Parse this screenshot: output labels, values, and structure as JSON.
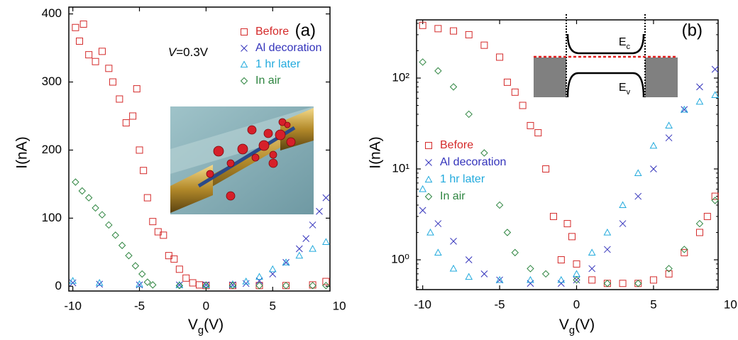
{
  "chart_data": [
    {
      "type": "scatter",
      "panel_label": "(a)",
      "annotation": "V=0.3V",
      "x_label": "Vg(V)",
      "y_label": "I(nA)",
      "xlim": [
        -10.3,
        9.3
      ],
      "ylim": [
        -7,
        410
      ],
      "xticks": [
        -10,
        -5,
        0,
        5,
        10
      ],
      "yticks": [
        0,
        100,
        200,
        300,
        400
      ],
      "legend_position": "upper right",
      "series": [
        {
          "name": "Before",
          "color": "#d42a2a",
          "marker": "square",
          "x": [
            -9.8,
            -9.5,
            -9.2,
            -8.8,
            -8.3,
            -7.8,
            -7.3,
            -7,
            -6.5,
            -6,
            -5.5,
            -5.2,
            -5,
            -4.7,
            -4.4,
            -4,
            -3.6,
            -3.2,
            -2.8,
            -2.4,
            -2,
            -1.5,
            -1,
            -0.5,
            0,
            2,
            4,
            6,
            8,
            9
          ],
          "values": [
            380,
            360,
            385,
            340,
            330,
            345,
            320,
            300,
            275,
            240,
            250,
            290,
            200,
            170,
            130,
            95,
            80,
            75,
            45,
            40,
            25,
            12,
            5,
            2,
            1,
            1,
            1,
            1,
            2,
            7
          ]
        },
        {
          "name": "Al decoration",
          "color": "#3333bb",
          "marker": "x",
          "x": [
            -10,
            -8,
            -5,
            -2,
            0,
            2,
            3,
            4,
            5,
            6,
            7,
            7.5,
            8,
            8.5,
            9
          ],
          "values": [
            5,
            3,
            2,
            2,
            2,
            2,
            4,
            8,
            18,
            35,
            55,
            70,
            90,
            110,
            130
          ]
        },
        {
          "name": "1 hr later",
          "color": "#22aadd",
          "marker": "triangle",
          "x": [
            -10,
            -8,
            -5,
            -2,
            0,
            2,
            3,
            4,
            5,
            6,
            7,
            8,
            9
          ],
          "values": [
            8,
            5,
            3,
            2,
            2,
            3,
            7,
            14,
            25,
            35,
            45,
            55,
            65
          ]
        },
        {
          "name": "In air",
          "color": "#2e8540",
          "marker": "diamond",
          "x": [
            -9.8,
            -9.3,
            -8.8,
            -8.3,
            -7.8,
            -7.3,
            -6.8,
            -6.3,
            -5.8,
            -5.3,
            -4.8,
            -4.4,
            -4,
            -2,
            0,
            2,
            4,
            6,
            8,
            9
          ],
          "values": [
            153,
            140,
            130,
            115,
            105,
            90,
            75,
            60,
            45,
            30,
            18,
            6,
            2,
            1,
            1,
            1,
            1,
            1,
            1,
            1
          ]
        }
      ]
    },
    {
      "type": "scatter",
      "panel_label": "(b)",
      "log_y": true,
      "x_label": "Vg(V)",
      "y_label": "I(nA)",
      "inset_labels": [
        "Ec",
        "Ev"
      ],
      "xlim": [
        -10.4,
        9.2
      ],
      "ylim": [
        0.47,
        437
      ],
      "xticks": [
        -10,
        -5,
        0,
        5,
        10
      ],
      "yticks": [
        {
          "value": 1,
          "label": "10⁰"
        },
        {
          "value": 10,
          "label": "10¹"
        },
        {
          "value": 100,
          "label": "10²"
        }
      ],
      "legend_position": "center left",
      "series": [
        {
          "name": "Before",
          "color": "#d42a2a",
          "marker": "square",
          "x": [
            -10,
            -9,
            -8,
            -7,
            -6,
            -5,
            -4.5,
            -4,
            -3.5,
            -3,
            -2.5,
            -2,
            -1.5,
            -1,
            -0.6,
            -0.3,
            0,
            1,
            2,
            3,
            4,
            5,
            6,
            7,
            8,
            8.5,
            9
          ],
          "values": [
            380,
            350,
            330,
            300,
            230,
            170,
            90,
            70,
            50,
            30,
            25,
            10,
            3,
            1,
            2.5,
            1.8,
            0.9,
            0.6,
            0.55,
            0.55,
            0.55,
            0.6,
            0.7,
            1.2,
            2,
            3,
            5
          ]
        },
        {
          "name": "Al decoration",
          "color": "#3333bb",
          "marker": "x",
          "x": [
            -10,
            -9,
            -8,
            -7,
            -6,
            -5,
            -3,
            -1,
            0,
            1,
            2,
            3,
            4,
            5,
            6,
            7,
            8,
            9
          ],
          "values": [
            3.5,
            2.5,
            1.6,
            1,
            0.7,
            0.6,
            0.55,
            0.55,
            0.6,
            0.8,
            1.3,
            2.5,
            5,
            10,
            22,
            45,
            80,
            125
          ]
        },
        {
          "name": "1 hr later",
          "color": "#22aadd",
          "marker": "triangle",
          "x": [
            -10,
            -9.5,
            -9,
            -8,
            -7,
            -5,
            -3,
            -1,
            0,
            1,
            2,
            3,
            4,
            5,
            6,
            7,
            8,
            9
          ],
          "values": [
            6,
            2,
            1.2,
            0.8,
            0.65,
            0.6,
            0.6,
            0.6,
            0.7,
            1.2,
            2,
            4,
            9,
            18,
            30,
            45,
            55,
            65
          ]
        },
        {
          "name": "In air",
          "color": "#2e8540",
          "marker": "diamond",
          "x": [
            -10,
            -9,
            -8,
            -7,
            -6,
            -5,
            -4.5,
            -4,
            -3,
            -2,
            0,
            2,
            4,
            6,
            7,
            8,
            9
          ],
          "values": [
            150,
            120,
            80,
            40,
            15,
            4,
            2,
            1.2,
            0.8,
            0.7,
            0.6,
            0.55,
            0.55,
            0.8,
            1.3,
            2.5,
            4.5
          ]
        }
      ]
    }
  ]
}
